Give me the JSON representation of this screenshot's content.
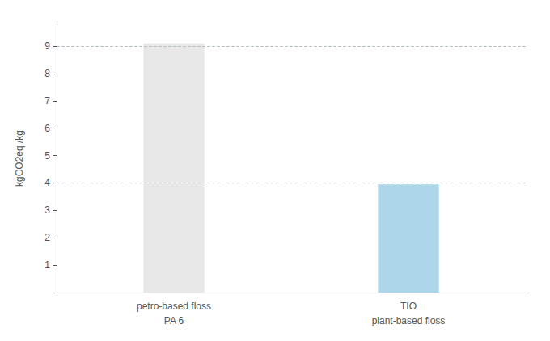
{
  "chart_data": {
    "type": "bar",
    "categories": [
      "petro-based floss\nPA 6",
      "TIO\nplant-based floss"
    ],
    "values": [
      9.1,
      3.95
    ],
    "colors": [
      "#e8e8e8",
      "#aed6ea"
    ],
    "ylabel": "kgCO2eq /kg",
    "ylim": [
      0,
      9.8
    ],
    "yticks": [
      1,
      2,
      3,
      4,
      5,
      6,
      7,
      8,
      9
    ],
    "hlines": [
      4.0,
      9.0
    ],
    "grid": false
  }
}
